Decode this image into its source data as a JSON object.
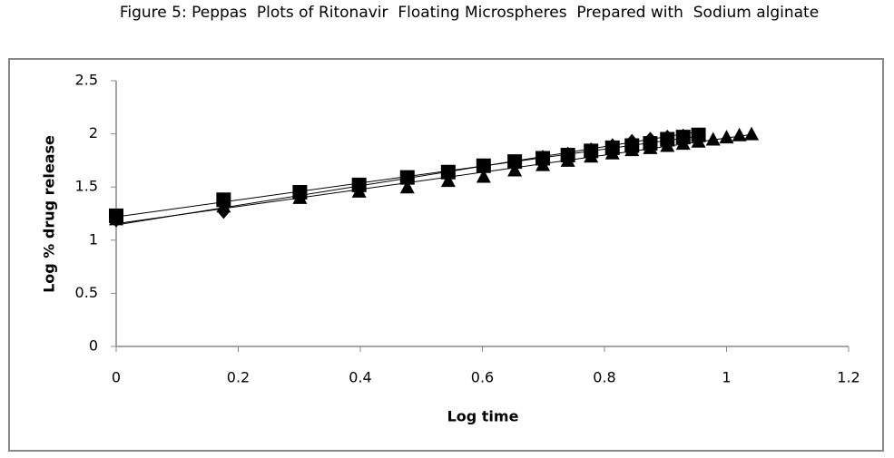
{
  "chart_data": {
    "type": "scatter",
    "title": "Figure 5: Peppas  Plots of Ritonavir  Floating Microspheres  Prepared with  Sodium alginate",
    "x_label": "Log time",
    "y_label": "Log % drug release",
    "xlim": [
      0,
      1.2
    ],
    "xticks": [
      0,
      0.2,
      0.4,
      0.6,
      0.8,
      1,
      1.2
    ],
    "ylim": [
      0,
      2.5
    ],
    "yticks": [
      0,
      0.5,
      1,
      1.5,
      2,
      2.5
    ],
    "grid": false,
    "trendline": true,
    "series": [
      {
        "marker": "diamond",
        "color": "#000000",
        "x": [
          0,
          0.176,
          0.301,
          0.398,
          0.477,
          0.544,
          0.602,
          0.653,
          0.699,
          0.74,
          0.778,
          0.813,
          0.845,
          0.875,
          0.903,
          0.929,
          0.954
        ],
        "values": [
          1.18,
          1.26,
          1.42,
          1.5,
          1.58,
          1.65,
          1.7,
          1.75,
          1.79,
          1.82,
          1.86,
          1.9,
          1.94,
          1.96,
          1.98,
          1.99,
          2.0
        ]
      },
      {
        "marker": "square",
        "color": "#000000",
        "x": [
          0,
          0.176,
          0.301,
          0.398,
          0.477,
          0.544,
          0.602,
          0.653,
          0.699,
          0.74,
          0.778,
          0.813,
          0.845,
          0.875,
          0.903,
          0.929,
          0.954
        ],
        "values": [
          1.23,
          1.38,
          1.45,
          1.52,
          1.59,
          1.64,
          1.7,
          1.74,
          1.77,
          1.8,
          1.84,
          1.87,
          1.89,
          1.91,
          1.95,
          1.97,
          1.99
        ]
      },
      {
        "marker": "triangle",
        "color": "#000000",
        "x": [
          0,
          0.176,
          0.301,
          0.398,
          0.477,
          0.544,
          0.602,
          0.653,
          0.699,
          0.74,
          0.778,
          0.813,
          0.845,
          0.875,
          0.903,
          0.929,
          0.954,
          0.978,
          1.0,
          1.021,
          1.041
        ],
        "values": [
          1.2,
          1.32,
          1.4,
          1.46,
          1.5,
          1.56,
          1.6,
          1.66,
          1.71,
          1.75,
          1.79,
          1.82,
          1.85,
          1.87,
          1.89,
          1.91,
          1.93,
          1.95,
          1.97,
          1.99,
          2.0
        ]
      }
    ]
  }
}
